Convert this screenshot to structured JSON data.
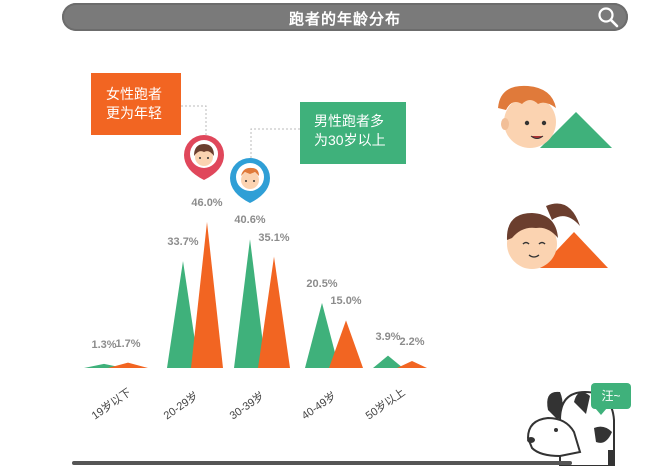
{
  "header": {
    "title": "跑者的年龄分布",
    "search_icon": "search-icon"
  },
  "callouts": {
    "female": [
      "女性跑者",
      "更为年轻"
    ],
    "male": [
      "男性跑者多",
      "为30岁以上"
    ]
  },
  "bubble": {
    "text": "汪~"
  },
  "colors": {
    "male": "#3fb17b",
    "female": "#f26522",
    "header": "#7a7a7a"
  },
  "chart_data": {
    "type": "area",
    "title": "跑者的年龄分布",
    "categories": [
      "19岁以下",
      "20-29岁",
      "30-39岁",
      "40-49岁",
      "50岁以上"
    ],
    "series": [
      {
        "name": "男性",
        "color": "#3fb17b",
        "values": [
          1.3,
          33.7,
          40.6,
          20.5,
          3.9
        ],
        "labels": [
          "1.3%",
          "33.7%",
          "40.6%",
          "20.5%",
          "3.9%"
        ]
      },
      {
        "name": "女性",
        "color": "#f26522",
        "values": [
          1.7,
          46.0,
          35.1,
          15.0,
          2.2
        ],
        "labels": [
          "1.7%",
          "46.0%",
          "35.1%",
          "15.0%",
          "2.2%"
        ]
      }
    ],
    "ylim": [
      0,
      46
    ],
    "grid": false
  }
}
